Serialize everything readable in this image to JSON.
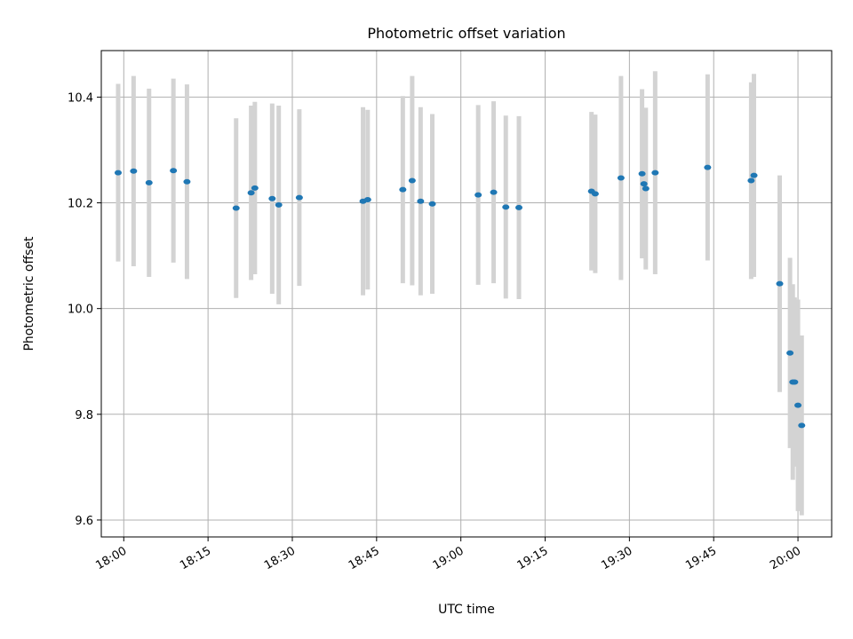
{
  "chart_data": {
    "type": "scatter",
    "title": "Photometric offset variation",
    "xlabel": "UTC time",
    "ylabel": "Photometric offset",
    "x_unit": "UTC time (HH:MM)",
    "xlim": [
      "17:56",
      "20:06"
    ],
    "ylim": [
      9.568,
      10.488
    ],
    "x_ticks": [
      "18:00",
      "18:15",
      "18:30",
      "18:45",
      "19:00",
      "19:15",
      "19:30",
      "19:45",
      "20:00"
    ],
    "y_ticks": [
      9.6,
      9.8,
      10.0,
      10.2,
      10.4
    ],
    "y_tick_labels": [
      "9.6",
      "9.8",
      "10.0",
      "10.2",
      "10.4"
    ],
    "grid": true,
    "x_tick_rotation": "30deg",
    "colors": {
      "points": "#1f77b4",
      "error_bars": "#d3d3d3",
      "grid": "#b0b0b0"
    },
    "points": [
      {
        "x": "17:59:00",
        "y": 10.257,
        "err": 0.168
      },
      {
        "x": "18:01:45",
        "y": 10.26,
        "err": 0.18
      },
      {
        "x": "18:04:30",
        "y": 10.238,
        "err": 0.178
      },
      {
        "x": "18:08:50",
        "y": 10.261,
        "err": 0.174
      },
      {
        "x": "18:11:15",
        "y": 10.24,
        "err": 0.184
      },
      {
        "x": "18:20:00",
        "y": 10.19,
        "err": 0.17
      },
      {
        "x": "18:22:40",
        "y": 10.219,
        "err": 0.165
      },
      {
        "x": "18:23:20",
        "y": 10.228,
        "err": 0.163
      },
      {
        "x": "18:26:25",
        "y": 10.208,
        "err": 0.18
      },
      {
        "x": "18:27:35",
        "y": 10.196,
        "err": 0.188
      },
      {
        "x": "18:31:15",
        "y": 10.21,
        "err": 0.167
      },
      {
        "x": "18:42:35",
        "y": 10.203,
        "err": 0.178
      },
      {
        "x": "18:43:25",
        "y": 10.206,
        "err": 0.17
      },
      {
        "x": "18:49:40",
        "y": 10.225,
        "err": 0.177
      },
      {
        "x": "18:51:20",
        "y": 10.242,
        "err": 0.198
      },
      {
        "x": "18:52:50",
        "y": 10.203,
        "err": 0.178
      },
      {
        "x": "18:54:55",
        "y": 10.198,
        "err": 0.17
      },
      {
        "x": "19:03:05",
        "y": 10.215,
        "err": 0.17
      },
      {
        "x": "19:05:50",
        "y": 10.22,
        "err": 0.172
      },
      {
        "x": "19:08:00",
        "y": 10.192,
        "err": 0.173
      },
      {
        "x": "19:10:20",
        "y": 10.191,
        "err": 0.173
      },
      {
        "x": "19:23:15",
        "y": 10.222,
        "err": 0.15
      },
      {
        "x": "19:23:55",
        "y": 10.217,
        "err": 0.15
      },
      {
        "x": "19:28:30",
        "y": 10.247,
        "err": 0.193
      },
      {
        "x": "19:32:15",
        "y": 10.255,
        "err": 0.16
      },
      {
        "x": "19:32:35",
        "y": 10.236,
        "err": 0.137
      },
      {
        "x": "19:32:55",
        "y": 10.227,
        "err": 0.153
      },
      {
        "x": "19:34:35",
        "y": 10.257,
        "err": 0.192
      },
      {
        "x": "19:43:55",
        "y": 10.267,
        "err": 0.176
      },
      {
        "x": "19:51:40",
        "y": 10.242,
        "err": 0.186
      },
      {
        "x": "19:52:10",
        "y": 10.252,
        "err": 0.192
      },
      {
        "x": "19:56:45",
        "y": 10.047,
        "err": 0.205
      },
      {
        "x": "19:58:35",
        "y": 9.916,
        "err": 0.18
      },
      {
        "x": "19:59:05",
        "y": 9.861,
        "err": 0.185
      },
      {
        "x": "19:59:25",
        "y": 9.861,
        "err": 0.16
      },
      {
        "x": "20:00:00",
        "y": 9.817,
        "err": 0.2
      },
      {
        "x": "20:00:40",
        "y": 9.779,
        "err": 0.17
      }
    ]
  }
}
